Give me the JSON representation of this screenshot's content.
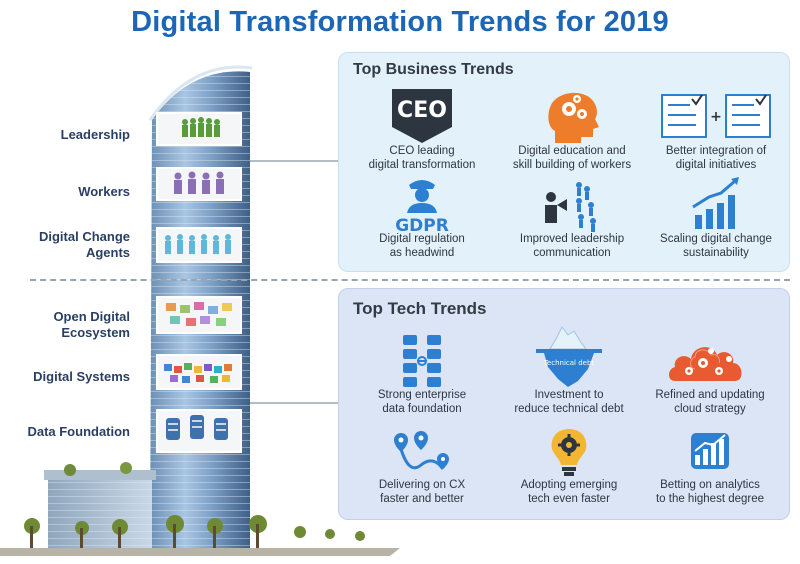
{
  "title": "Digital Transformation Trends for 2019",
  "tower_labels": [
    "Leadership",
    "Workers",
    "Digital Change\nAgents",
    "Open Digital\nEcosystem",
    "Digital Systems",
    "Data Foundation"
  ],
  "business": {
    "title": "Top Business Trends",
    "items": [
      {
        "icon": "ceo-badge-icon",
        "caption": "CEO leading\ndigital transformation",
        "badge": "CEO"
      },
      {
        "icon": "head-gears-icon",
        "caption": "Digital education and\nskill  building of workers"
      },
      {
        "icon": "checklist-plus-icon",
        "caption": "Better integration of\ndigital initiatives"
      },
      {
        "icon": "gdpr-officer-icon",
        "caption": "Digital regulation\nas headwind",
        "badge": "GDPR"
      },
      {
        "icon": "leader-megaphone-icon",
        "caption": "Improved leadership\ncommunication"
      },
      {
        "icon": "growth-bars-icon",
        "caption": "Scaling digital change\nsustainability"
      }
    ]
  },
  "tech": {
    "title": "Top Tech Trends",
    "items": [
      {
        "icon": "database-stack-icon",
        "caption": "Strong enterprise\ndata foundation"
      },
      {
        "icon": "iceberg-icon",
        "caption": "Investment to\nreduce technical debt",
        "badge": "Technical debt"
      },
      {
        "icon": "cloud-gears-icon",
        "caption": "Refined and updating\ncloud strategy"
      },
      {
        "icon": "route-pins-icon",
        "caption": "Delivering on CX\nfaster and better"
      },
      {
        "icon": "lightbulb-gear-icon",
        "caption": "Adopting emerging\ntech even faster"
      },
      {
        "icon": "analytics-chart-icon",
        "caption": "Betting on analytics\nto the highest degree"
      }
    ]
  },
  "colors": {
    "title": "#1b66b5",
    "icon_blue": "#2d7fd1",
    "icon_orange": "#ee7d2b",
    "icon_dark": "#2d3640"
  }
}
